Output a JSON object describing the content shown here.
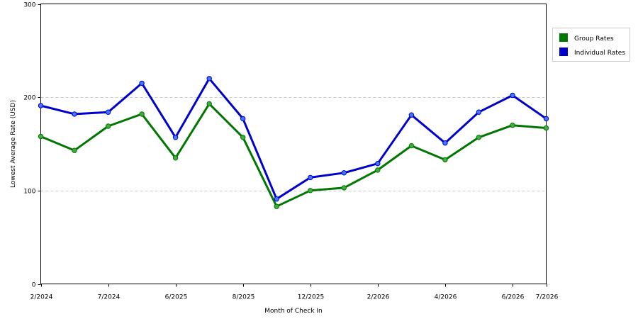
{
  "chart_data": {
    "type": "line",
    "title": "",
    "xlabel": "Month of Check In",
    "ylabel": "Lowest Average Rate (USD)",
    "ylim": [
      0,
      300
    ],
    "y_ticks": [
      0,
      100,
      200,
      300
    ],
    "y_tick_labels": [
      "0",
      "100",
      "200",
      "300"
    ],
    "x_tick_labels": [
      "2/2024",
      "7/2024",
      "6/2025",
      "8/2025",
      "12/2025",
      "2/2026",
      "4/2026",
      "6/2026",
      "7/2026"
    ],
    "x_tick_indices": [
      0,
      2,
      4,
      6,
      8,
      10,
      12,
      14,
      15
    ],
    "num_points": 16,
    "grid": true,
    "legend_position": "right",
    "series": [
      {
        "name": "Group Rates",
        "color": "#007700",
        "marker_color": "#44aa44",
        "values": [
          158,
          143,
          169,
          182,
          135,
          193,
          157,
          83,
          100,
          103,
          122,
          148,
          133,
          157,
          170,
          167
        ]
      },
      {
        "name": "Individual Rates",
        "color": "#0000cc",
        "marker_color": "#4477ff",
        "values": [
          191,
          182,
          184,
          215,
          157,
          220,
          177,
          91,
          114,
          119,
          129,
          181,
          151,
          184,
          202,
          177
        ]
      }
    ]
  }
}
